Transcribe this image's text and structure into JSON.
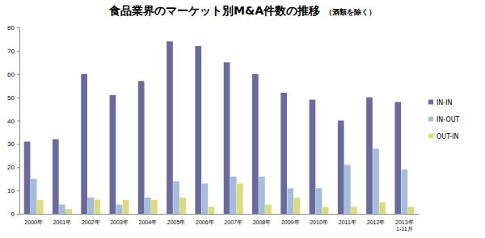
{
  "chart_data": {
    "type": "bar",
    "title": "食品業界のマーケット別M&A件数の推移",
    "subtitle": "（酒類を除く）",
    "categories": [
      "2000年",
      "2001年",
      "2002年",
      "2003年",
      "2004年",
      "2005年",
      "2006年",
      "2007年",
      "2008年",
      "2009年",
      "2010年",
      "2011年",
      "2012年",
      "2013年\n1-11月"
    ],
    "series": [
      {
        "name": "IN-IN",
        "color": "#6a6a9e",
        "values": [
          31,
          32,
          60,
          51,
          57,
          74,
          72,
          65,
          60,
          52,
          49,
          40,
          50,
          48
        ]
      },
      {
        "name": "IN-OUT",
        "color": "#a6bcdb",
        "values": [
          15,
          4,
          7,
          4,
          7,
          14,
          13,
          16,
          16,
          11,
          11,
          21,
          28,
          19
        ]
      },
      {
        "name": "OUT-IN",
        "color": "#dcdc7c",
        "values": [
          6,
          2,
          6,
          6,
          6,
          7,
          3,
          13,
          4,
          7,
          3,
          3,
          5,
          3
        ]
      }
    ],
    "ylim": [
      0,
      80
    ],
    "yticks": [
      0,
      10,
      20,
      30,
      40,
      50,
      60,
      70,
      80
    ],
    "grid": false,
    "legend": "right"
  }
}
